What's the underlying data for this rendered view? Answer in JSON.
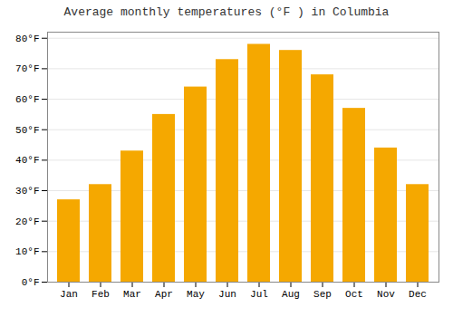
{
  "chart_data": {
    "type": "bar",
    "title": "Average monthly temperatures (°F ) in Columbia",
    "categories": [
      "Jan",
      "Feb",
      "Mar",
      "Apr",
      "May",
      "Jun",
      "Jul",
      "Aug",
      "Sep",
      "Oct",
      "Nov",
      "Dec"
    ],
    "values": [
      27,
      32,
      43,
      55,
      64,
      73,
      78,
      76,
      68,
      57,
      44,
      32
    ],
    "color": "#F5A800",
    "ylim": [
      0,
      82
    ],
    "yticks": [
      {
        "value": 0,
        "label": "0°F"
      },
      {
        "value": 10,
        "label": "10°F"
      },
      {
        "value": 20,
        "label": "20°F"
      },
      {
        "value": 30,
        "label": "30°F"
      },
      {
        "value": 40,
        "label": "40°F"
      },
      {
        "value": 50,
        "label": "50°F"
      },
      {
        "value": 60,
        "label": "60°F"
      },
      {
        "value": 70,
        "label": "70°F"
      },
      {
        "value": 80,
        "label": "80°F"
      }
    ],
    "grid": true
  }
}
